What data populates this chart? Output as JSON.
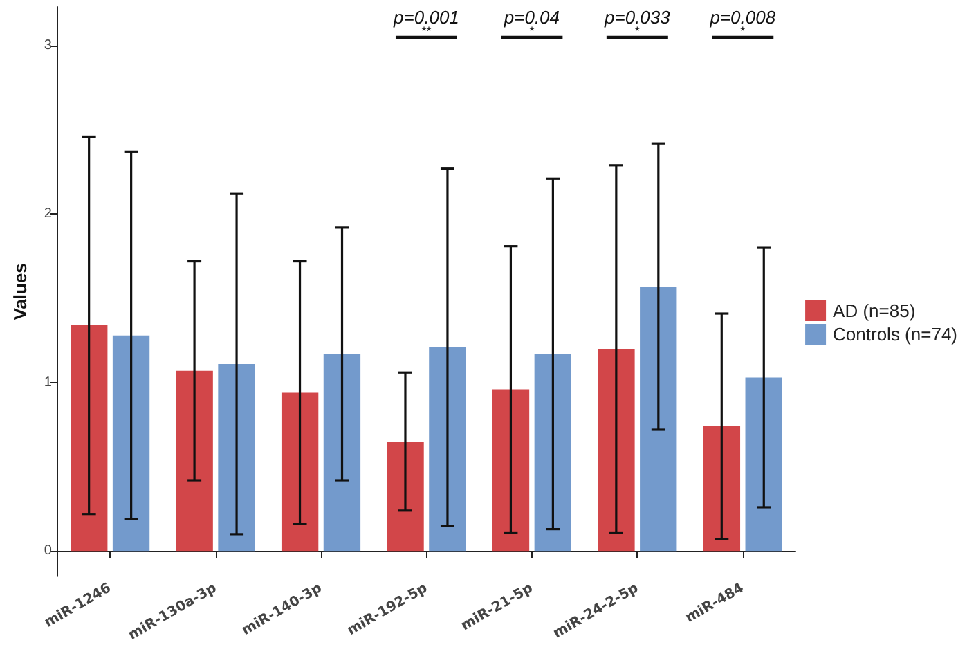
{
  "chart_data": {
    "type": "bar",
    "ylabel": "Values",
    "categories": [
      "miR-1246",
      "miR-130a-3p",
      "miR-140-3p",
      "miR-192-5p",
      "miR-21-5p",
      "miR-24-2-5p",
      "miR-484"
    ],
    "series": [
      {
        "name": "AD (n=85)",
        "color": "#d03c3f",
        "values": [
          1.34,
          1.07,
          0.94,
          0.65,
          0.96,
          1.2,
          0.74
        ],
        "errors": [
          1.12,
          0.65,
          0.78,
          0.41,
          0.85,
          1.09,
          0.67
        ]
      },
      {
        "name": "Controls (n=74)",
        "color": "#6b95c9",
        "values": [
          1.28,
          1.11,
          1.17,
          1.21,
          1.17,
          1.57,
          1.03
        ],
        "errors": [
          1.09,
          1.01,
          0.75,
          1.06,
          1.04,
          0.85,
          0.77
        ]
      }
    ],
    "ylim": [
      -0.15,
      3.23
    ],
    "yticks": [
      0,
      1,
      2,
      3
    ],
    "grid": false,
    "legend": "right",
    "annotations": [
      "p=0.001",
      "**",
      "p=0.04",
      "*",
      "p=0.033",
      "*",
      "p=0.008",
      "*"
    ]
  }
}
